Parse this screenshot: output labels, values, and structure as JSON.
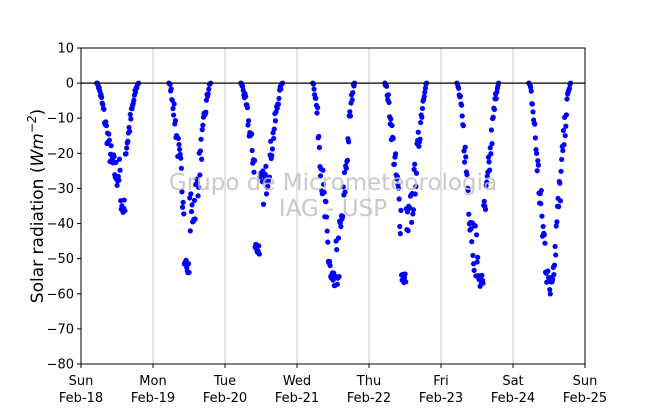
{
  "chart_data": {
    "type": "scatter",
    "ylabel_main": "Solar radiation (",
    "ylabel_unit_base": "Wm",
    "ylabel_unit_exp": "−2",
    "ylabel_end": ")",
    "ylim": [
      -80,
      10
    ],
    "xlim": [
      0,
      7
    ],
    "yticks": [
      10,
      0,
      -10,
      -20,
      -30,
      -40,
      -50,
      -60,
      -70,
      -80
    ],
    "ytick_labels": [
      "10",
      "0",
      "−10",
      "−20",
      "−30",
      "−40",
      "−50",
      "−60",
      "−70",
      "−80"
    ],
    "xticks": [
      {
        "x": 0,
        "day": "Sun",
        "date": "Feb-18"
      },
      {
        "x": 1,
        "day": "Mon",
        "date": "Feb-19"
      },
      {
        "x": 2,
        "day": "Tue",
        "date": "Feb-20"
      },
      {
        "x": 3,
        "day": "Wed",
        "date": "Feb-21"
      },
      {
        "x": 4,
        "day": "Thu",
        "date": "Feb-22"
      },
      {
        "x": 5,
        "day": "Fri",
        "date": "Feb-23"
      },
      {
        "x": 6,
        "day": "Sat",
        "date": "Feb-24"
      },
      {
        "x": 7,
        "day": "Sun",
        "date": "Feb-25"
      }
    ],
    "grid": "vertical",
    "zero_line": true,
    "marker_color": "#0000ff",
    "watermark_line1": "Grupo de Micrometeorologia",
    "watermark_line2": "IAG - USP",
    "series": [
      {
        "day": 0,
        "start": 0.22,
        "end": 0.8,
        "trough": -26,
        "dip_low": -37,
        "dip_at": 0.58
      },
      {
        "day": 1,
        "start": 0.22,
        "end": 0.8,
        "trough": -38,
        "dip_low": -54,
        "dip_at": 0.47
      },
      {
        "day": 2,
        "start": 0.22,
        "end": 0.8,
        "trough": -30,
        "dip_low": -49,
        "dip_at": 0.45
      },
      {
        "day": 3,
        "start": 0.22,
        "end": 0.8,
        "trough": -55,
        "dip_low": -58,
        "dip_at": 0.5
      },
      {
        "day": 4,
        "start": 0.22,
        "end": 0.8,
        "trough": -42,
        "dip_low": -57,
        "dip_at": 0.48
      },
      {
        "day": 5,
        "start": 0.22,
        "end": 0.8,
        "trough": -48,
        "dip_low": -58,
        "dip_at": 0.55
      },
      {
        "day": 6,
        "start": 0.22,
        "end": 0.8,
        "trough": -52,
        "dip_low": -57,
        "dip_at": 0.52
      }
    ]
  }
}
